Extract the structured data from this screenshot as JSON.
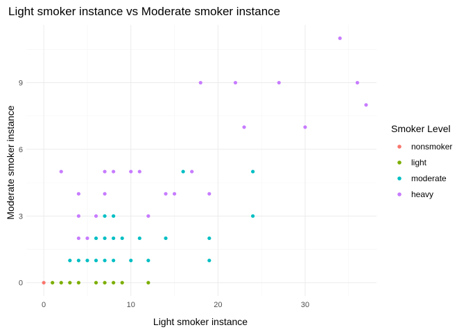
{
  "chart_data": {
    "type": "scatter",
    "title": "Light smoker instance vs Moderate smoker instance",
    "xlabel": "Light smoker instance",
    "ylabel": "Moderate smoker instance",
    "xlim": [
      -2,
      38.2
    ],
    "ylim": [
      -0.6,
      11.6
    ],
    "x_ticks": [
      0,
      10,
      20,
      30
    ],
    "y_ticks": [
      0,
      3,
      6,
      9
    ],
    "x_minor": [
      5,
      15,
      25,
      35
    ],
    "y_minor": [
      1.5,
      4.5,
      7.5,
      10.5
    ],
    "grid": true,
    "legend": {
      "title": "Smoker Level",
      "position": "right",
      "entries": [
        {
          "label": "nonsmoker",
          "color": "#F8766D"
        },
        {
          "label": "light",
          "color": "#7CAE00"
        },
        {
          "label": "moderate",
          "color": "#00BFC4"
        },
        {
          "label": "heavy",
          "color": "#C77CFF"
        }
      ]
    },
    "series": [
      {
        "name": "nonsmoker",
        "color": "#F8766D",
        "points": [
          [
            0,
            0
          ]
        ]
      },
      {
        "name": "light",
        "color": "#7CAE00",
        "points": [
          [
            1,
            0
          ],
          [
            2,
            0
          ],
          [
            3,
            0
          ],
          [
            4,
            0
          ],
          [
            6,
            0
          ],
          [
            7,
            0
          ],
          [
            8,
            0
          ],
          [
            9,
            0
          ],
          [
            12,
            0
          ]
        ]
      },
      {
        "name": "moderate",
        "color": "#00BFC4",
        "points": [
          [
            3,
            1
          ],
          [
            4,
            1
          ],
          [
            5,
            1
          ],
          [
            6,
            1
          ],
          [
            7,
            1
          ],
          [
            8,
            1
          ],
          [
            10,
            1
          ],
          [
            12,
            1
          ],
          [
            19,
            1
          ],
          [
            6,
            2
          ],
          [
            7,
            2
          ],
          [
            8,
            2
          ],
          [
            9,
            2
          ],
          [
            11,
            2
          ],
          [
            14,
            2
          ],
          [
            19,
            2
          ],
          [
            7,
            3
          ],
          [
            8,
            3
          ],
          [
            24,
            3
          ],
          [
            16,
            5
          ],
          [
            24,
            5
          ]
        ]
      },
      {
        "name": "heavy",
        "color": "#C77CFF",
        "points": [
          [
            4,
            2
          ],
          [
            5,
            2
          ],
          [
            4,
            3
          ],
          [
            6,
            3
          ],
          [
            12,
            3
          ],
          [
            4,
            4
          ],
          [
            7,
            4
          ],
          [
            14,
            4
          ],
          [
            15,
            4
          ],
          [
            19,
            4
          ],
          [
            2,
            5
          ],
          [
            7,
            5
          ],
          [
            8,
            5
          ],
          [
            10,
            5
          ],
          [
            11,
            5
          ],
          [
            17,
            5
          ],
          [
            23,
            7
          ],
          [
            30,
            7
          ],
          [
            37,
            8
          ],
          [
            18,
            9
          ],
          [
            22,
            9
          ],
          [
            27,
            9
          ],
          [
            36,
            9
          ],
          [
            34,
            11
          ]
        ]
      }
    ]
  }
}
